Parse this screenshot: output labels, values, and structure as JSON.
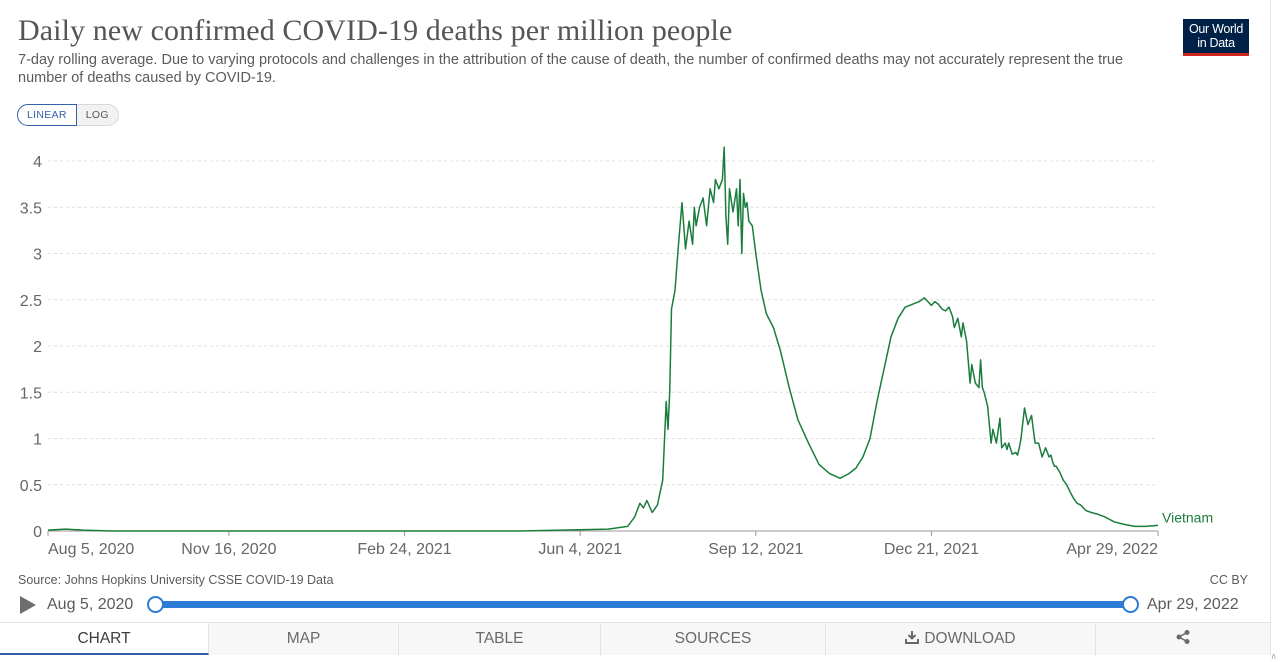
{
  "title": "Daily new confirmed COVID-19 deaths per million people",
  "subtitle": "7-day rolling average. Due to varying protocols and challenges in the attribution of the cause of death, the number of confirmed deaths may not accurately represent the true number of deaths caused by COVID-19.",
  "logo": {
    "line1": "Our World",
    "line2": "in Data"
  },
  "scale_toggle": {
    "linear": "LINEAR",
    "log": "LOG",
    "selected": "linear"
  },
  "source": "Source: Johns Hopkins University CSSE COVID-19 Data",
  "license": "CC BY",
  "timeline": {
    "start": "Aug 5, 2020",
    "end": "Apr 29, 2022"
  },
  "tabs": [
    {
      "label": "CHART",
      "active": true
    },
    {
      "label": "MAP"
    },
    {
      "label": "TABLE"
    },
    {
      "label": "SOURCES"
    },
    {
      "label": "DOWNLOAD",
      "icon": "download-icon"
    },
    {
      "label": "",
      "icon": "share-icon"
    }
  ],
  "colors": {
    "series": "#1b7d3d",
    "accent": "#2c7bd5",
    "logo_bg": "#002147",
    "logo_bar": "#ce261e"
  },
  "chart_data": {
    "type": "line",
    "ylim": [
      0,
      4.2
    ],
    "y_ticks": [
      0,
      0.5,
      1,
      1.5,
      2,
      2.5,
      3,
      3.5,
      4
    ],
    "y_tick_labels": [
      "0",
      "0.5",
      "1",
      "1.5",
      "2",
      "2.5",
      "3",
      "3.5",
      "4"
    ],
    "x_range": [
      "2020-08-05",
      "2022-04-29"
    ],
    "x_ticks": [
      "2020-08-05",
      "2020-11-16",
      "2021-02-24",
      "2021-06-04",
      "2021-09-12",
      "2021-12-21",
      "2022-04-29"
    ],
    "x_tick_labels": [
      "Aug 5, 2020",
      "Nov 16, 2020",
      "Feb 24, 2021",
      "Jun 4, 2021",
      "Sep 12, 2021",
      "Dec 21, 2021",
      "Apr 29, 2022"
    ],
    "grid": "horizontal-dashed",
    "series": [
      {
        "name": "Vietnam",
        "x": [
          "2020-08-05",
          "2020-08-15",
          "2020-08-25",
          "2020-09-10",
          "2020-10-01",
          "2021-01-01",
          "2021-05-01",
          "2021-06-20",
          "2021-07-01",
          "2021-07-05",
          "2021-07-08",
          "2021-07-10",
          "2021-07-12",
          "2021-07-15",
          "2021-07-18",
          "2021-07-21",
          "2021-07-23",
          "2021-07-24",
          "2021-07-25",
          "2021-07-26",
          "2021-07-28",
          "2021-07-30",
          "2021-08-01",
          "2021-08-03",
          "2021-08-05",
          "2021-08-07",
          "2021-08-08",
          "2021-08-09",
          "2021-08-11",
          "2021-08-13",
          "2021-08-15",
          "2021-08-17",
          "2021-08-19",
          "2021-08-20",
          "2021-08-22",
          "2021-08-24",
          "2021-08-25",
          "2021-08-26",
          "2021-08-27",
          "2021-08-28",
          "2021-08-30",
          "2021-09-01",
          "2021-09-02",
          "2021-09-03",
          "2021-09-04",
          "2021-09-05",
          "2021-09-06",
          "2021-09-07",
          "2021-09-08",
          "2021-09-10",
          "2021-09-12",
          "2021-09-15",
          "2021-09-18",
          "2021-09-22",
          "2021-09-26",
          "2021-10-01",
          "2021-10-06",
          "2021-10-12",
          "2021-10-18",
          "2021-10-24",
          "2021-10-30",
          "2021-11-04",
          "2021-11-08",
          "2021-11-12",
          "2021-11-16",
          "2021-11-20",
          "2021-11-24",
          "2021-11-28",
          "2021-12-02",
          "2021-12-06",
          "2021-12-10",
          "2021-12-14",
          "2021-12-17",
          "2021-12-19",
          "2021-12-21",
          "2021-12-23",
          "2021-12-25",
          "2021-12-27",
          "2021-12-29",
          "2021-12-31",
          "2022-01-02",
          "2022-01-03",
          "2022-01-05",
          "2022-01-07",
          "2022-01-08",
          "2022-01-10",
          "2022-01-12",
          "2022-01-13",
          "2022-01-15",
          "2022-01-17",
          "2022-01-18",
          "2022-01-19",
          "2022-01-20",
          "2022-01-22",
          "2022-01-24",
          "2022-01-25",
          "2022-01-27",
          "2022-01-29",
          "2022-01-30",
          "2022-02-01",
          "2022-02-02",
          "2022-02-03",
          "2022-02-05",
          "2022-02-07",
          "2022-02-08",
          "2022-02-09",
          "2022-02-10",
          "2022-02-12",
          "2022-02-14",
          "2022-02-16",
          "2022-02-18",
          "2022-02-20",
          "2022-02-22",
          "2022-02-24",
          "2022-02-26",
          "2022-02-27",
          "2022-02-28",
          "2022-03-01",
          "2022-03-02",
          "2022-03-04",
          "2022-03-06",
          "2022-03-08",
          "2022-03-10",
          "2022-03-12",
          "2022-03-14",
          "2022-03-16",
          "2022-03-19",
          "2022-03-22",
          "2022-03-26",
          "2022-03-30",
          "2022-04-04",
          "2022-04-10",
          "2022-04-16",
          "2022-04-22",
          "2022-04-29"
        ],
        "y": [
          0.01,
          0.02,
          0.01,
          0.0,
          0.0,
          0.0,
          0.0,
          0.02,
          0.05,
          0.15,
          0.3,
          0.25,
          0.33,
          0.2,
          0.28,
          0.55,
          1.4,
          1.1,
          1.5,
          2.4,
          2.6,
          3.1,
          3.55,
          3.05,
          3.35,
          3.1,
          3.5,
          3.3,
          3.5,
          3.6,
          3.3,
          3.7,
          3.55,
          3.8,
          3.7,
          3.8,
          4.15,
          3.4,
          3.1,
          3.7,
          3.45,
          3.7,
          3.3,
          3.8,
          3.0,
          3.65,
          3.5,
          3.55,
          3.35,
          3.3,
          3.0,
          2.6,
          2.35,
          2.2,
          1.95,
          1.55,
          1.2,
          0.95,
          0.72,
          0.62,
          0.57,
          0.62,
          0.68,
          0.8,
          1.0,
          1.4,
          1.75,
          2.1,
          2.3,
          2.42,
          2.45,
          2.48,
          2.52,
          2.48,
          2.44,
          2.48,
          2.45,
          2.4,
          2.38,
          2.42,
          2.32,
          2.2,
          2.3,
          2.1,
          2.25,
          2.05,
          1.6,
          1.8,
          1.6,
          1.55,
          1.85,
          1.55,
          1.5,
          1.35,
          0.95,
          1.1,
          0.95,
          1.22,
          0.9,
          0.95,
          0.88,
          0.95,
          0.83,
          0.85,
          0.82,
          0.9,
          1.0,
          1.33,
          1.15,
          1.25,
          0.95,
          0.95,
          0.8,
          0.9,
          0.8,
          0.82,
          0.75,
          0.7,
          0.7,
          0.64,
          0.55,
          0.5,
          0.42,
          0.35,
          0.3,
          0.28,
          0.22,
          0.2,
          0.18,
          0.15,
          0.1,
          0.07,
          0.05,
          0.05,
          0.06
        ]
      }
    ]
  }
}
